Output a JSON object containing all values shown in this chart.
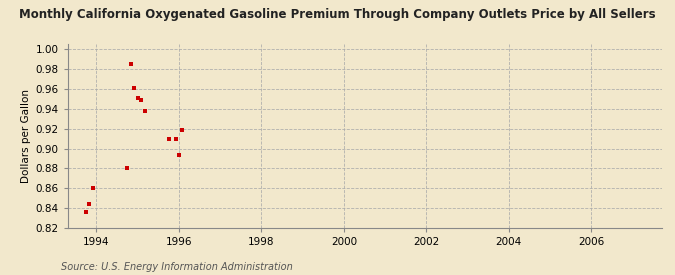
{
  "title": "Monthly California Oxygenated Gasoline Premium Through Company Outlets Price by All Sellers",
  "ylabel": "Dollars per Gallon",
  "source": "Source: U.S. Energy Information Administration",
  "background_color": "#f2e8cc",
  "dot_color": "#cc0000",
  "xlim": [
    1993.3,
    2007.7
  ],
  "ylim": [
    0.82,
    1.005
  ],
  "xticks": [
    1994,
    1996,
    1998,
    2000,
    2002,
    2004,
    2006
  ],
  "yticks": [
    0.82,
    0.84,
    0.86,
    0.88,
    0.9,
    0.92,
    0.94,
    0.96,
    0.98,
    1.0
  ],
  "data_x": [
    1993.75,
    1993.83,
    1993.92,
    1994.75,
    1994.83,
    1994.92,
    1995.0,
    1995.08,
    1995.17,
    1995.75,
    1995.92,
    1996.0,
    1996.08
  ],
  "data_y": [
    0.836,
    0.844,
    0.86,
    0.88,
    0.985,
    0.961,
    0.951,
    0.949,
    0.938,
    0.91,
    0.91,
    0.894,
    0.919
  ]
}
